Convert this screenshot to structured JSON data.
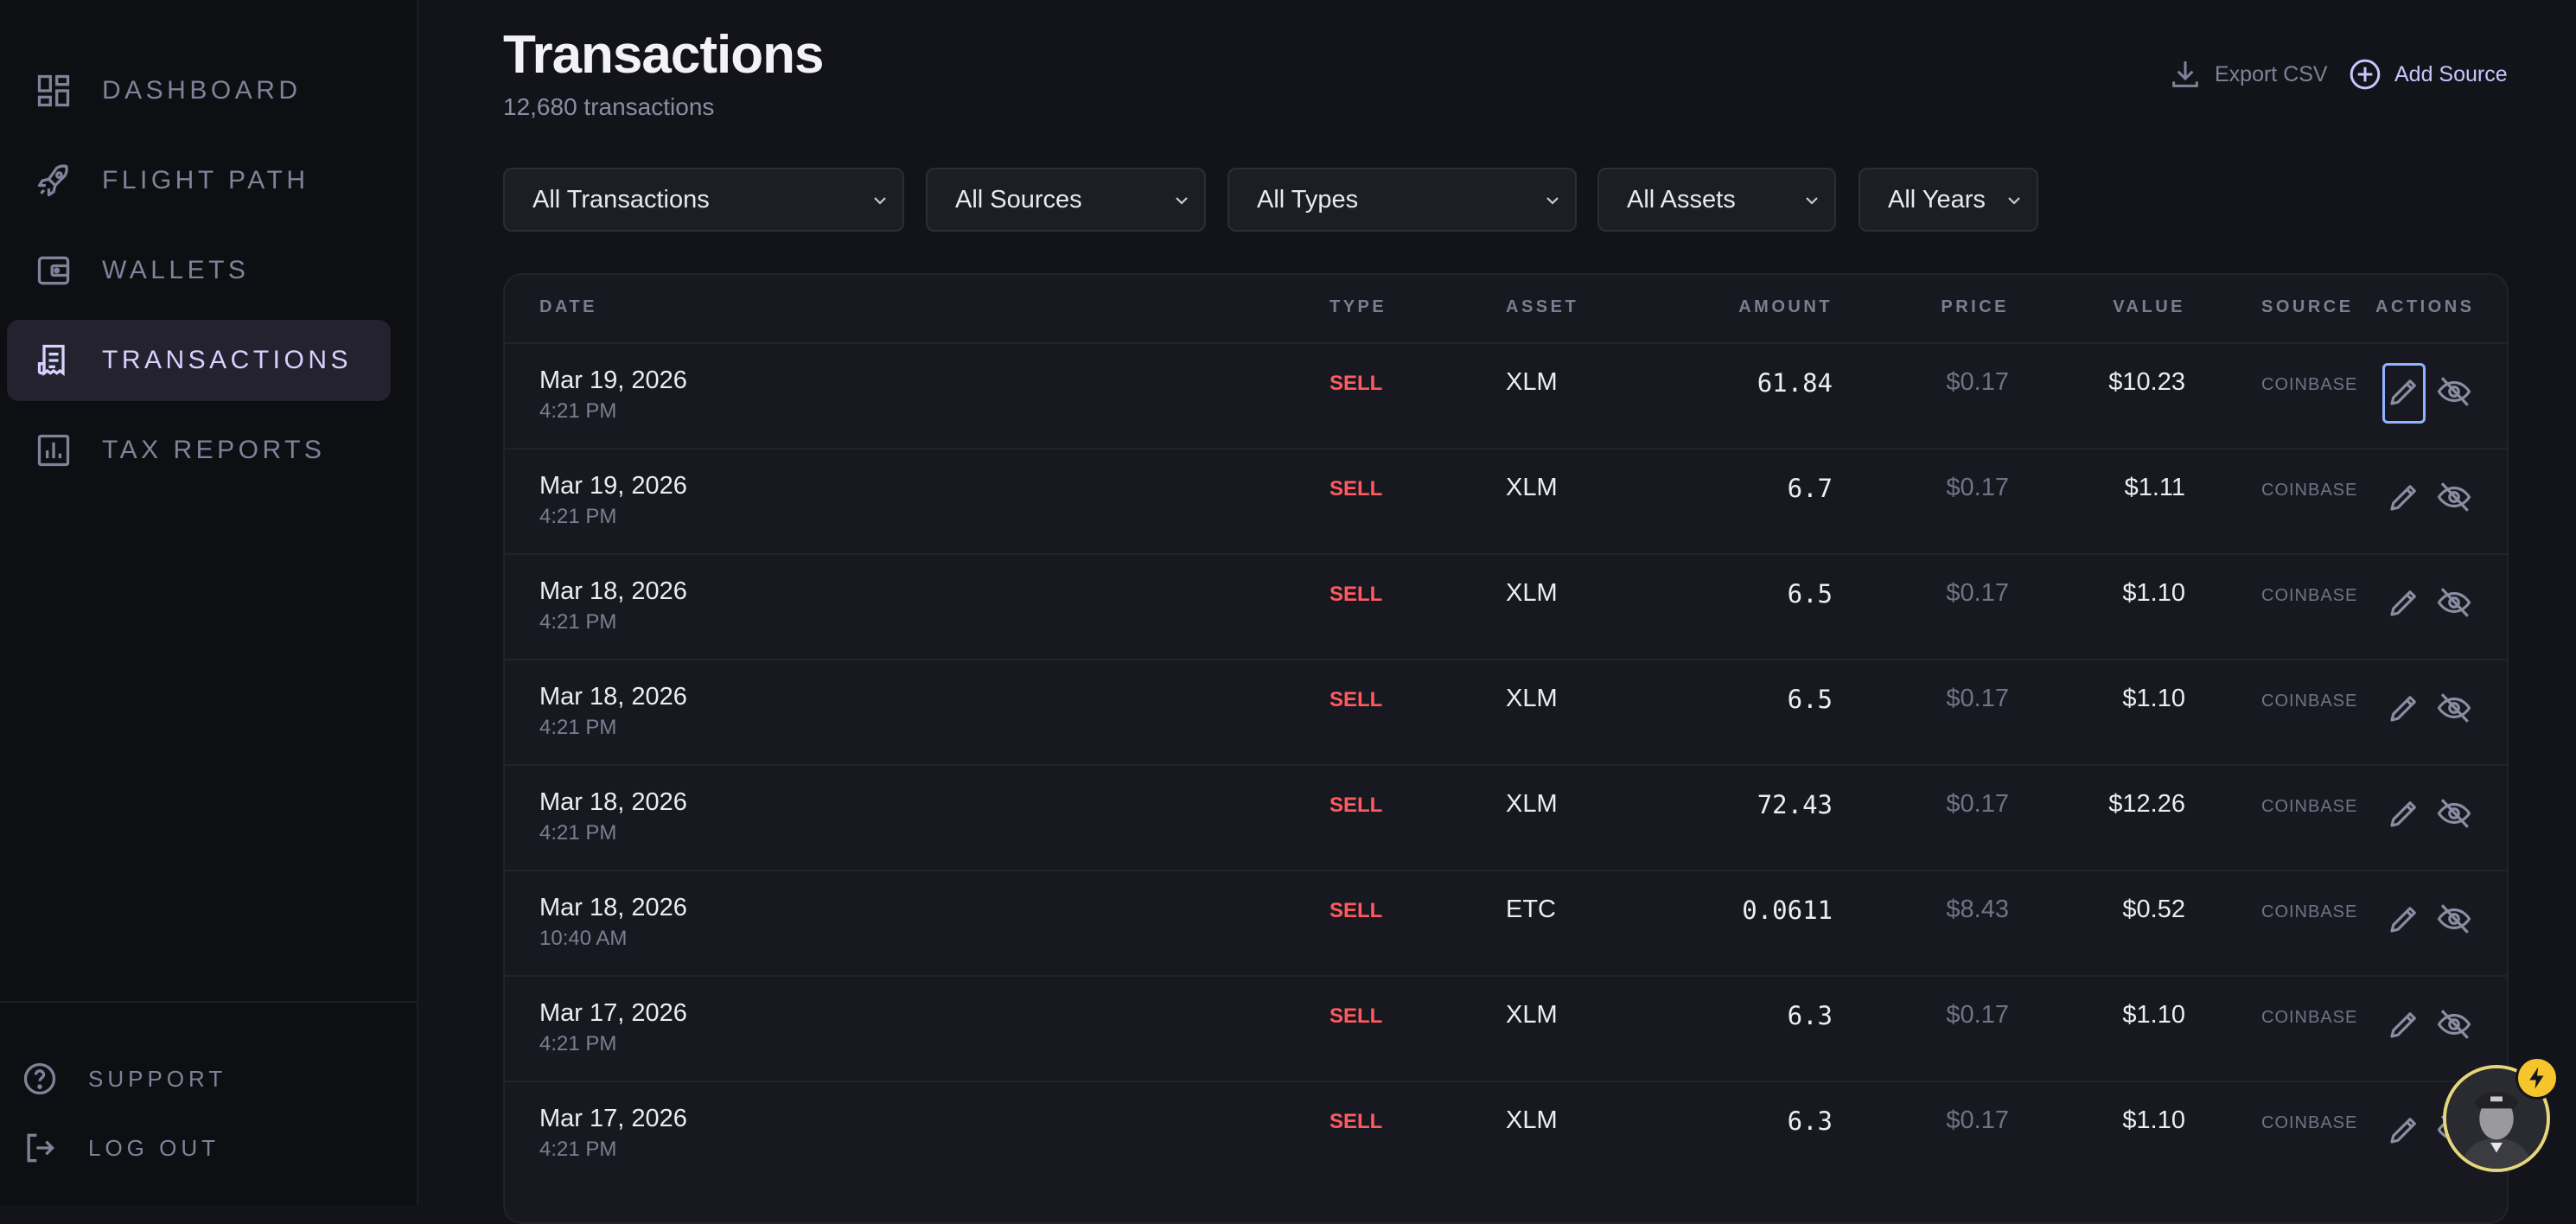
{
  "sidebar": {
    "nav": [
      {
        "label": "DASHBOARD",
        "icon": "dashboard-icon"
      },
      {
        "label": "FLIGHT PATH",
        "icon": "rocket-icon"
      },
      {
        "label": "WALLETS",
        "icon": "wallet-icon"
      },
      {
        "label": "TRANSACTIONS",
        "icon": "receipt-icon"
      },
      {
        "label": "TAX REPORTS",
        "icon": "bar-chart-icon"
      }
    ],
    "active": "TRANSACTIONS",
    "footer": [
      {
        "label": "SUPPORT",
        "icon": "help-circle-icon"
      },
      {
        "label": "LOG OUT",
        "icon": "logout-icon"
      }
    ]
  },
  "header": {
    "title": "Transactions",
    "subtitle": "12,680 transactions",
    "export_label": "Export CSV",
    "add_label": "Add Source"
  },
  "filters": [
    "All Transactions",
    "All Sources",
    "All Types",
    "All Assets",
    "All Years"
  ],
  "table": {
    "columns": {
      "date": "DATE",
      "type": "TYPE",
      "asset": "ASSET",
      "amount": "AMOUNT",
      "price": "PRICE",
      "value": "VALUE",
      "source": "SOURCE",
      "actions": "ACTIONS"
    },
    "rows": [
      {
        "date": "Mar 19, 2026",
        "time": "4:21 PM",
        "type": "SELL",
        "asset": "XLM",
        "amount": "61.84",
        "price": "$0.17",
        "value": "$10.23",
        "source": "COINBASE"
      },
      {
        "date": "Mar 19, 2026",
        "time": "4:21 PM",
        "type": "SELL",
        "asset": "XLM",
        "amount": "6.7",
        "price": "$0.17",
        "value": "$1.11",
        "source": "COINBASE"
      },
      {
        "date": "Mar 18, 2026",
        "time": "4:21 PM",
        "type": "SELL",
        "asset": "XLM",
        "amount": "6.5",
        "price": "$0.17",
        "value": "$1.10",
        "source": "COINBASE"
      },
      {
        "date": "Mar 18, 2026",
        "time": "4:21 PM",
        "type": "SELL",
        "asset": "XLM",
        "amount": "6.5",
        "price": "$0.17",
        "value": "$1.10",
        "source": "COINBASE"
      },
      {
        "date": "Mar 18, 2026",
        "time": "4:21 PM",
        "type": "SELL",
        "asset": "XLM",
        "amount": "72.43",
        "price": "$0.17",
        "value": "$12.26",
        "source": "COINBASE"
      },
      {
        "date": "Mar 18, 2026",
        "time": "10:40 AM",
        "type": "SELL",
        "asset": "ETC",
        "amount": "0.0611",
        "price": "$8.43",
        "value": "$0.52",
        "source": "COINBASE"
      },
      {
        "date": "Mar 17, 2026",
        "time": "4:21 PM",
        "type": "SELL",
        "asset": "XLM",
        "amount": "6.3",
        "price": "$0.17",
        "value": "$1.10",
        "source": "COINBASE"
      },
      {
        "date": "Mar 17, 2026",
        "time": "4:21 PM",
        "type": "SELL",
        "asset": "XLM",
        "amount": "6.3",
        "price": "$0.17",
        "value": "$1.10",
        "source": "COINBASE"
      }
    ]
  },
  "colors": {
    "accent": "#c9c4ff",
    "sell": "#ff5a5f",
    "background": "#13141a",
    "focus_ring": "#8fb4ff"
  }
}
